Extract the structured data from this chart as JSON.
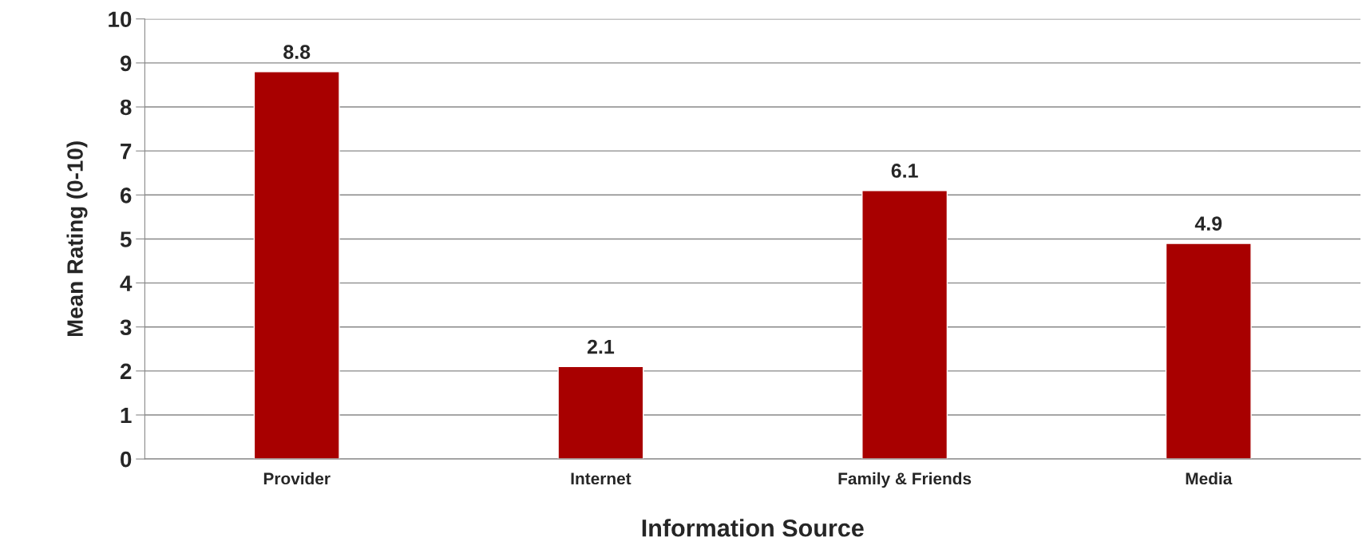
{
  "chart_data": {
    "type": "bar",
    "xlabel": "Information Source",
    "ylabel": "Mean Rating (0-10)",
    "categories": [
      "Provider",
      "Internet",
      "Family & Friends",
      "Media"
    ],
    "values": [
      8.8,
      2.1,
      6.1,
      4.9
    ],
    "color": "#a80000",
    "ylim": [
      0,
      10
    ],
    "yticks": [
      0,
      1,
      2,
      3,
      4,
      5,
      6,
      7,
      8,
      9,
      10
    ],
    "grid": "y",
    "data_labels": true,
    "legend": false
  }
}
